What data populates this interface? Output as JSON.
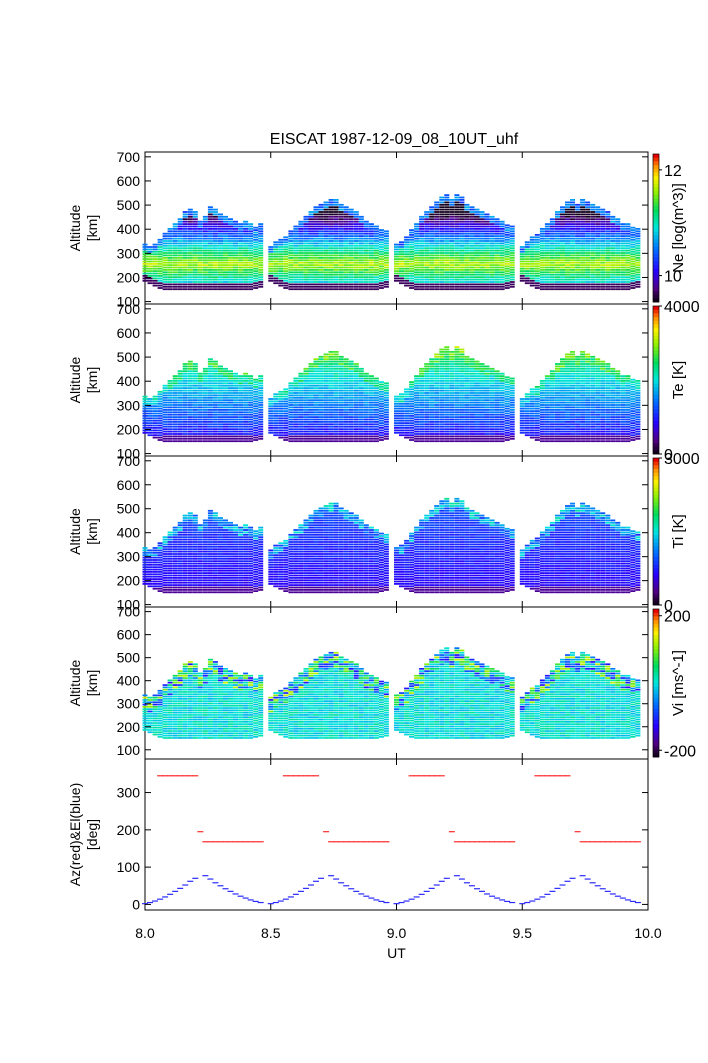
{
  "title": "EISCAT 1987-12-09_08_10UT_uhf",
  "chart_data": [
    {
      "type": "heatmap",
      "parameter": "Ne",
      "ylabel_lines": [
        "Altitude",
        "[km]"
      ],
      "colorbar_label": "Ne [log(m^3)]",
      "colorbar_ticks": [
        "10",
        "12"
      ],
      "colorbar_range": [
        9.5,
        12.3
      ],
      "yticks": [
        "100",
        "200",
        "300",
        "400",
        "500",
        "600",
        "700"
      ],
      "ylim": [
        90,
        720
      ]
    },
    {
      "type": "heatmap",
      "parameter": "Te",
      "ylabel_lines": [
        "Altitude",
        "[km]"
      ],
      "colorbar_label": "Te [K]",
      "colorbar_ticks": [
        "0",
        "4000"
      ],
      "colorbar_range": [
        0,
        4000
      ],
      "yticks": [
        "100",
        "200",
        "300",
        "400",
        "500",
        "600",
        "700"
      ],
      "ylim": [
        90,
        720
      ]
    },
    {
      "type": "heatmap",
      "parameter": "Ti",
      "ylabel_lines": [
        "Altitude",
        "[km]"
      ],
      "colorbar_label": "Ti [K]",
      "colorbar_ticks": [
        "0",
        "3000"
      ],
      "colorbar_range": [
        0,
        3000
      ],
      "yticks": [
        "100",
        "200",
        "300",
        "400",
        "500",
        "600",
        "700"
      ],
      "ylim": [
        90,
        720
      ]
    },
    {
      "type": "heatmap",
      "parameter": "Vi",
      "ylabel_lines": [
        "Altitude",
        "[km]"
      ],
      "colorbar_label": "Vi [ms^-1]",
      "colorbar_ticks": [
        "-200",
        "200"
      ],
      "colorbar_range": [
        -220,
        220
      ],
      "yticks": [
        "100",
        "200",
        "300",
        "400",
        "500",
        "600",
        "700"
      ],
      "ylim": [
        60,
        720
      ]
    },
    {
      "type": "scatter",
      "ylabel_lines": [
        "Az(red)&El(blue)",
        "[deg]"
      ],
      "yticks": [
        "0",
        "100",
        "200",
        "300"
      ],
      "ylim": [
        -15,
        390
      ],
      "xticks": [
        "8.0",
        "8.5",
        "9.0",
        "9.5",
        "10.0"
      ],
      "xlim": [
        8.0,
        10.0
      ],
      "xlabel": "UT",
      "series": [
        {
          "color": "#ff2a2a",
          "points": [
            [
              8.06,
              345
            ],
            [
              8.08,
              345
            ],
            [
              8.1,
              345
            ],
            [
              8.12,
              345
            ],
            [
              8.14,
              345
            ],
            [
              8.16,
              345
            ],
            [
              8.18,
              345
            ],
            [
              8.2,
              345
            ],
            [
              8.22,
              195
            ],
            [
              8.24,
              168
            ],
            [
              8.26,
              168
            ],
            [
              8.28,
              168
            ],
            [
              8.3,
              168
            ],
            [
              8.32,
              168
            ],
            [
              8.34,
              168
            ],
            [
              8.36,
              168
            ],
            [
              8.38,
              168
            ],
            [
              8.4,
              168
            ],
            [
              8.42,
              168
            ],
            [
              8.44,
              168
            ],
            [
              8.46,
              168
            ],
            [
              8.56,
              345
            ],
            [
              8.58,
              345
            ],
            [
              8.6,
              345
            ],
            [
              8.62,
              345
            ],
            [
              8.64,
              345
            ],
            [
              8.66,
              345
            ],
            [
              8.68,
              345
            ],
            [
              8.72,
              195
            ],
            [
              8.74,
              168
            ],
            [
              8.76,
              168
            ],
            [
              8.78,
              168
            ],
            [
              8.8,
              168
            ],
            [
              8.82,
              168
            ],
            [
              8.84,
              168
            ],
            [
              8.86,
              168
            ],
            [
              8.88,
              168
            ],
            [
              8.9,
              168
            ],
            [
              8.92,
              168
            ],
            [
              8.94,
              168
            ],
            [
              8.96,
              168
            ],
            [
              9.06,
              345
            ],
            [
              9.08,
              345
            ],
            [
              9.1,
              345
            ],
            [
              9.12,
              345
            ],
            [
              9.14,
              345
            ],
            [
              9.16,
              345
            ],
            [
              9.18,
              345
            ],
            [
              9.22,
              195
            ],
            [
              9.24,
              168
            ],
            [
              9.26,
              168
            ],
            [
              9.28,
              168
            ],
            [
              9.3,
              168
            ],
            [
              9.32,
              168
            ],
            [
              9.34,
              168
            ],
            [
              9.36,
              168
            ],
            [
              9.38,
              168
            ],
            [
              9.4,
              168
            ],
            [
              9.42,
              168
            ],
            [
              9.44,
              168
            ],
            [
              9.46,
              168
            ],
            [
              9.56,
              345
            ],
            [
              9.58,
              345
            ],
            [
              9.6,
              345
            ],
            [
              9.62,
              345
            ],
            [
              9.64,
              345
            ],
            [
              9.66,
              345
            ],
            [
              9.68,
              345
            ],
            [
              9.72,
              195
            ],
            [
              9.74,
              168
            ],
            [
              9.76,
              168
            ],
            [
              9.78,
              168
            ],
            [
              9.8,
              168
            ],
            [
              9.82,
              168
            ],
            [
              9.84,
              168
            ],
            [
              9.86,
              168
            ],
            [
              9.88,
              168
            ],
            [
              9.9,
              168
            ],
            [
              9.92,
              168
            ],
            [
              9.94,
              168
            ],
            [
              9.96,
              168
            ]
          ]
        },
        {
          "color": "#2a2aff",
          "points": [
            [
              8.0,
              2
            ],
            [
              8.02,
              5
            ],
            [
              8.04,
              9
            ],
            [
              8.06,
              14
            ],
            [
              8.08,
              20
            ],
            [
              8.1,
              27
            ],
            [
              8.12,
              35
            ],
            [
              8.14,
              43
            ],
            [
              8.16,
              52
            ],
            [
              8.18,
              62
            ],
            [
              8.2,
              70
            ],
            [
              8.24,
              77
            ],
            [
              8.26,
              68
            ],
            [
              8.28,
              58
            ],
            [
              8.3,
              50
            ],
            [
              8.32,
              42
            ],
            [
              8.34,
              35
            ],
            [
              8.36,
              28
            ],
            [
              8.38,
              22
            ],
            [
              8.4,
              17
            ],
            [
              8.42,
              12
            ],
            [
              8.44,
              8
            ],
            [
              8.46,
              5
            ],
            [
              8.5,
              2
            ],
            [
              8.52,
              5
            ],
            [
              8.54,
              9
            ],
            [
              8.56,
              14
            ],
            [
              8.58,
              20
            ],
            [
              8.6,
              27
            ],
            [
              8.62,
              35
            ],
            [
              8.64,
              43
            ],
            [
              8.66,
              52
            ],
            [
              8.68,
              62
            ],
            [
              8.7,
              70
            ],
            [
              8.74,
              77
            ],
            [
              8.76,
              68
            ],
            [
              8.78,
              58
            ],
            [
              8.8,
              50
            ],
            [
              8.82,
              42
            ],
            [
              8.84,
              35
            ],
            [
              8.86,
              28
            ],
            [
              8.88,
              22
            ],
            [
              8.9,
              17
            ],
            [
              8.92,
              12
            ],
            [
              8.94,
              8
            ],
            [
              8.96,
              5
            ],
            [
              9.0,
              2
            ],
            [
              9.02,
              5
            ],
            [
              9.04,
              9
            ],
            [
              9.06,
              14
            ],
            [
              9.08,
              20
            ],
            [
              9.1,
              27
            ],
            [
              9.12,
              35
            ],
            [
              9.14,
              43
            ],
            [
              9.16,
              52
            ],
            [
              9.18,
              62
            ],
            [
              9.2,
              70
            ],
            [
              9.24,
              77
            ],
            [
              9.26,
              68
            ],
            [
              9.28,
              58
            ],
            [
              9.3,
              50
            ],
            [
              9.32,
              42
            ],
            [
              9.34,
              35
            ],
            [
              9.36,
              28
            ],
            [
              9.38,
              22
            ],
            [
              9.4,
              17
            ],
            [
              9.42,
              12
            ],
            [
              9.44,
              8
            ],
            [
              9.46,
              5
            ],
            [
              9.5,
              2
            ],
            [
              9.52,
              5
            ],
            [
              9.54,
              9
            ],
            [
              9.56,
              14
            ],
            [
              9.58,
              20
            ],
            [
              9.6,
              27
            ],
            [
              9.62,
              35
            ],
            [
              9.64,
              43
            ],
            [
              9.66,
              52
            ],
            [
              9.68,
              62
            ],
            [
              9.7,
              70
            ],
            [
              9.74,
              77
            ],
            [
              9.76,
              68
            ],
            [
              9.78,
              58
            ],
            [
              9.8,
              50
            ],
            [
              9.82,
              42
            ],
            [
              9.84,
              35
            ],
            [
              9.86,
              28
            ],
            [
              9.88,
              22
            ],
            [
              9.9,
              17
            ],
            [
              9.92,
              12
            ],
            [
              9.94,
              8
            ],
            [
              9.96,
              5
            ]
          ]
        }
      ]
    }
  ],
  "profile_times": [
    8.0,
    8.02,
    8.04,
    8.06,
    8.08,
    8.1,
    8.12,
    8.14,
    8.16,
    8.18,
    8.2,
    8.22,
    8.24,
    8.26,
    8.28,
    8.3,
    8.32,
    8.34,
    8.36,
    8.38,
    8.4,
    8.42,
    8.44,
    8.46,
    8.5,
    8.52,
    8.54,
    8.56,
    8.58,
    8.6,
    8.62,
    8.64,
    8.66,
    8.68,
    8.7,
    8.72,
    8.74,
    8.76,
    8.78,
    8.8,
    8.82,
    8.84,
    8.86,
    8.88,
    8.9,
    8.92,
    8.94,
    8.96,
    9.0,
    9.02,
    9.04,
    9.06,
    9.08,
    9.1,
    9.12,
    9.14,
    9.16,
    9.18,
    9.2,
    9.22,
    9.24,
    9.26,
    9.28,
    9.3,
    9.32,
    9.34,
    9.36,
    9.38,
    9.4,
    9.42,
    9.44,
    9.46,
    9.5,
    9.52,
    9.54,
    9.56,
    9.58,
    9.6,
    9.62,
    9.64,
    9.66,
    9.68,
    9.7,
    9.72,
    9.74,
    9.76,
    9.78,
    9.8,
    9.82,
    9.84,
    9.86,
    9.88,
    9.9,
    9.92,
    9.94,
    9.96
  ],
  "profile_top_km": [
    340,
    330,
    340,
    360,
    380,
    400,
    420,
    440,
    470,
    480,
    470,
    430,
    450,
    490,
    480,
    460,
    450,
    440,
    430,
    420,
    430,
    420,
    410,
    420,
    330,
    350,
    360,
    370,
    390,
    410,
    430,
    450,
    470,
    490,
    500,
    510,
    520,
    520,
    500,
    490,
    480,
    470,
    450,
    430,
    420,
    410,
    400,
    390,
    340,
    350,
    370,
    400,
    420,
    450,
    470,
    490,
    510,
    530,
    540,
    520,
    540,
    530,
    500,
    490,
    480,
    470,
    460,
    450,
    440,
    430,
    420,
    410,
    330,
    350,
    370,
    380,
    400,
    420,
    440,
    470,
    490,
    510,
    520,
    500,
    520,
    510,
    500,
    490,
    480,
    470,
    450,
    440,
    420,
    420,
    410,
    400
  ],
  "profile_bottom_km": [
    185,
    175,
    165,
    155,
    150,
    150,
    150,
    150,
    150,
    150,
    150,
    150,
    150,
    150,
    150,
    150,
    150,
    150,
    150,
    150,
    150,
    150,
    155,
    160,
    185,
    175,
    165,
    155,
    150,
    150,
    150,
    150,
    150,
    150,
    150,
    150,
    150,
    150,
    150,
    150,
    150,
    150,
    150,
    150,
    150,
    150,
    155,
    160,
    185,
    175,
    165,
    155,
    150,
    150,
    150,
    150,
    150,
    150,
    150,
    150,
    150,
    150,
    150,
    150,
    150,
    150,
    150,
    150,
    150,
    150,
    155,
    160,
    185,
    175,
    165,
    155,
    150,
    150,
    150,
    150,
    150,
    150,
    150,
    150,
    150,
    150,
    150,
    150,
    150,
    150,
    150,
    150,
    150,
    150,
    155,
    160
  ]
}
